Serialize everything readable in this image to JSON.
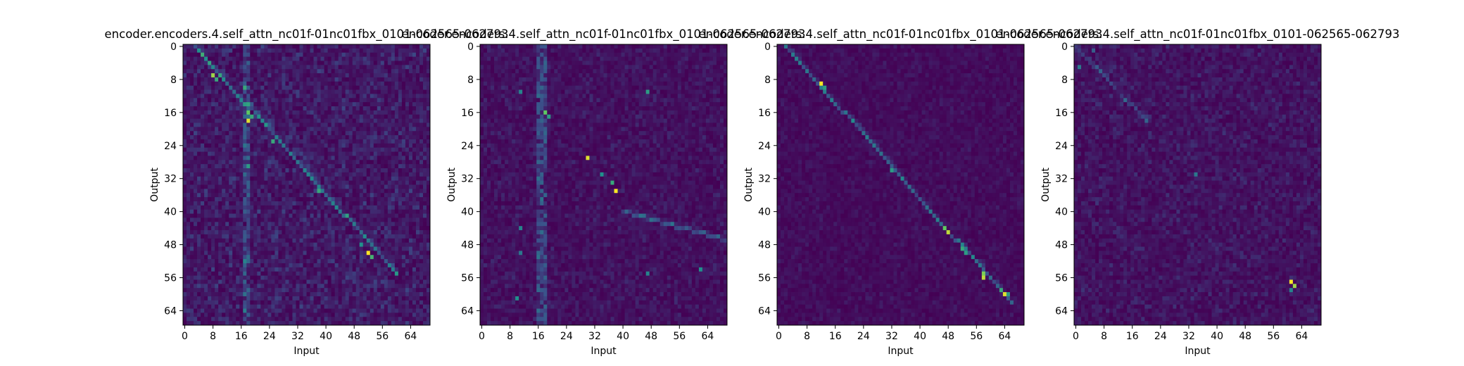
{
  "chart_data": [
    {
      "type": "heatmap",
      "title": "encoder.encoders.4.self_attn_nc01f-01nc01fbx_0101-062565-062793",
      "xlabel": "Input",
      "ylabel": "Output",
      "x_ticks": [
        0,
        8,
        16,
        24,
        32,
        40,
        48,
        56,
        64
      ],
      "y_ticks": [
        0,
        8,
        16,
        24,
        32,
        40,
        48,
        56,
        64
      ],
      "size": [
        70,
        68
      ],
      "colormap": [
        "#440154",
        "#3b528b",
        "#21918c",
        "#5ec962",
        "#fde725"
      ],
      "peaks": [
        [
          8,
          7,
          0.85
        ],
        [
          9,
          8,
          0.6
        ],
        [
          17,
          10,
          0.6
        ],
        [
          18,
          16,
          0.75
        ],
        [
          18,
          18,
          0.95
        ],
        [
          19,
          17,
          0.6
        ],
        [
          25,
          23,
          0.6
        ],
        [
          18,
          29,
          0.55
        ],
        [
          38,
          35,
          0.6
        ],
        [
          52,
          50,
          1.0
        ],
        [
          53,
          51,
          0.65
        ],
        [
          50,
          48,
          0.5
        ]
      ],
      "diagonal": {
        "x0": 3,
        "y0": 0,
        "x1": 60,
        "y1": 55,
        "strength": 0.35
      },
      "noise": 0.22,
      "column_streaks": [
        17,
        18
      ]
    },
    {
      "type": "heatmap",
      "title": "encoder.encoders.4.self_attn_nc01f-01nc01fbx_0101-062565-062793",
      "xlabel": "Input",
      "ylabel": "Output",
      "x_ticks": [
        0,
        8,
        16,
        24,
        32,
        40,
        48,
        56,
        64
      ],
      "y_ticks": [
        0,
        8,
        16,
        24,
        32,
        40,
        48,
        56,
        64
      ],
      "size": [
        70,
        68
      ],
      "colormap": [
        "#440154",
        "#3b528b",
        "#21918c",
        "#5ec962",
        "#fde725"
      ],
      "peaks": [
        [
          18,
          16,
          0.75
        ],
        [
          19,
          17,
          0.55
        ],
        [
          30,
          27,
          0.95
        ],
        [
          37,
          33,
          0.6
        ],
        [
          38,
          35,
          1.0
        ],
        [
          34,
          31,
          0.5
        ],
        [
          47,
          11,
          0.55
        ],
        [
          11,
          11,
          0.45
        ],
        [
          11,
          44,
          0.45
        ],
        [
          11,
          50,
          0.4
        ],
        [
          10,
          61,
          0.5
        ],
        [
          47,
          55,
          0.45
        ],
        [
          62,
          54,
          0.5
        ]
      ],
      "diagonal": {
        "x0": 40,
        "y0": 40,
        "x1": 70,
        "y1": 47,
        "strength": 0.2
      },
      "noise": 0.14,
      "column_streaks": [
        16,
        17,
        18
      ]
    },
    {
      "type": "heatmap",
      "title": "encoder.encoders.4.self_attn_nc01f-01nc01fbx_0101-062565-062793",
      "xlabel": "Input",
      "ylabel": "Output",
      "x_ticks": [
        0,
        8,
        16,
        24,
        32,
        40,
        48,
        56,
        64
      ],
      "y_ticks": [
        0,
        8,
        16,
        24,
        32,
        40,
        48,
        56,
        64
      ],
      "size": [
        70,
        68
      ],
      "colormap": [
        "#440154",
        "#3b528b",
        "#21918c",
        "#5ec962",
        "#fde725"
      ],
      "peaks": [
        [
          12,
          9,
          1.0
        ],
        [
          13,
          10,
          0.55
        ],
        [
          32,
          30,
          0.55
        ],
        [
          47,
          44,
          0.75
        ],
        [
          48,
          45,
          0.9
        ],
        [
          52,
          49,
          0.6
        ],
        [
          53,
          50,
          0.55
        ],
        [
          58,
          55,
          0.8
        ],
        [
          58,
          56,
          0.9
        ],
        [
          63,
          59,
          0.6
        ],
        [
          64,
          60,
          0.95
        ],
        [
          65,
          60,
          0.55
        ]
      ],
      "diagonal": {
        "x0": 2,
        "y0": 0,
        "x1": 66,
        "y1": 62,
        "strength": 0.35
      },
      "noise": 0.1,
      "column_streaks": []
    },
    {
      "type": "heatmap",
      "title": "encoder.encoders.4.self_attn_nc01f-01nc01fbx_0101-062565-062793",
      "xlabel": "Input",
      "ylabel": "Output",
      "x_ticks": [
        0,
        8,
        16,
        24,
        32,
        40,
        48,
        56,
        64
      ],
      "y_ticks": [
        0,
        8,
        16,
        24,
        32,
        40,
        48,
        56,
        64
      ],
      "size": [
        70,
        68
      ],
      "colormap": [
        "#440154",
        "#3b528b",
        "#21918c",
        "#5ec962",
        "#fde725"
      ],
      "peaks": [
        [
          61,
          57,
          1.0
        ],
        [
          62,
          58,
          0.85
        ],
        [
          61,
          59,
          0.45
        ],
        [
          1,
          5,
          0.4
        ],
        [
          34,
          31,
          0.4
        ],
        [
          5,
          1,
          0.3
        ]
      ],
      "diagonal": {
        "x0": 0,
        "y0": 0,
        "x1": 20,
        "y1": 18,
        "strength": 0.15
      },
      "noise": 0.16,
      "column_streaks": []
    }
  ]
}
